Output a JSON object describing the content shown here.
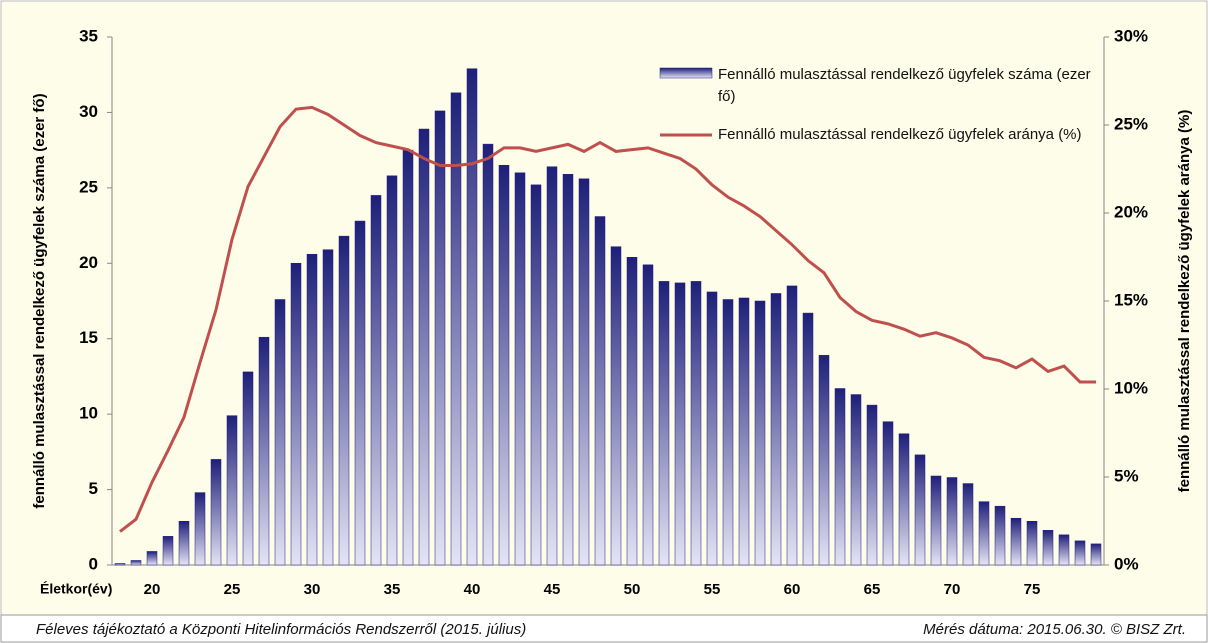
{
  "chart_data": {
    "type": "bar_line",
    "ylabel": "fennálló mulasztással rendelkező  ügyfelek száma (ezer fő)",
    "y2label": "fennálló mulasztással rendelkező ügyfelek aránya (%)",
    "xlabel": "Életkor(év)",
    "categories": [
      null,
      null,
      20,
      null,
      null,
      null,
      null,
      25,
      null,
      null,
      null,
      null,
      30,
      null,
      null,
      null,
      null,
      35,
      null,
      null,
      null,
      null,
      40,
      null,
      null,
      null,
      null,
      45,
      null,
      null,
      null,
      null,
      50,
      null,
      null,
      null,
      null,
      55,
      null,
      null,
      null,
      null,
      60,
      null,
      null,
      null,
      null,
      65,
      null,
      null,
      null,
      null,
      70,
      null,
      null,
      null,
      null,
      75,
      null,
      null,
      null,
      null
    ],
    "series": [
      {
        "name": "Fennálló mulasztással rendelkező ügyfelek száma (ezer fő)",
        "color": "#1f1f7a",
        "kind": "bar",
        "values": [
          0.1,
          0.3,
          0.9,
          1.9,
          2.9,
          4.8,
          7.0,
          9.9,
          12.8,
          15.1,
          17.6,
          20.0,
          20.6,
          20.9,
          21.8,
          22.8,
          24.5,
          25.8,
          27.5,
          28.9,
          30.1,
          31.3,
          32.9,
          27.9,
          26.5,
          26.0,
          25.2,
          26.4,
          25.9,
          25.6,
          23.1,
          21.1,
          20.4,
          19.9,
          18.8,
          18.7,
          18.8,
          18.1,
          17.6,
          17.7,
          17.5,
          18.0,
          18.5,
          16.7,
          13.9,
          11.7,
          11.3,
          10.6,
          9.5,
          8.7,
          7.3,
          5.9,
          5.8,
          5.4,
          4.2,
          3.9,
          3.1,
          2.9,
          2.3,
          2.0,
          1.6,
          1.4
        ]
      },
      {
        "name": "Fennálló mulasztással rendelkező ügyfelek aránya (%)",
        "color": "#c0504d",
        "kind": "line",
        "axis": "y2",
        "values": [
          1.9,
          2.6,
          4.7,
          6.5,
          8.4,
          11.5,
          14.5,
          18.5,
          21.5,
          23.2,
          24.9,
          25.9,
          26.0,
          25.6,
          25.0,
          24.4,
          24.0,
          23.8,
          23.6,
          23.1,
          22.7,
          22.7,
          22.8,
          23.1,
          23.7,
          23.7,
          23.5,
          23.7,
          23.9,
          23.5,
          24.0,
          23.5,
          23.6,
          23.7,
          23.4,
          23.1,
          22.5,
          21.6,
          20.9,
          20.4,
          19.8,
          19.0,
          18.2,
          17.3,
          16.6,
          15.2,
          14.4,
          13.9,
          13.7,
          13.4,
          13.0,
          13.2,
          12.9,
          12.5,
          11.8,
          11.6,
          11.2,
          11.7,
          11.0,
          11.3,
          10.4,
          10.4
        ]
      }
    ],
    "ylim": [
      0,
      35
    ],
    "yticks": [
      0,
      5,
      10,
      15,
      20,
      25,
      30,
      35
    ],
    "y2lim": [
      0,
      30
    ],
    "y2ticks": [
      {
        "value": 0,
        "label": "0%"
      },
      {
        "value": 5,
        "label": "5%"
      },
      {
        "value": 10,
        "label": "10%"
      },
      {
        "value": 15,
        "label": "15%"
      },
      {
        "value": 20,
        "label": "20%"
      },
      {
        "value": 25,
        "label": "25%"
      },
      {
        "value": 30,
        "label": "30%"
      }
    ],
    "grid": false
  },
  "footer": {
    "left": "Féleves tájékoztató a Központi Hitelinformációs Rendszerről (2015. július)",
    "right": "Mérés dátuma: 2015.06.30. © BISZ Zrt."
  }
}
